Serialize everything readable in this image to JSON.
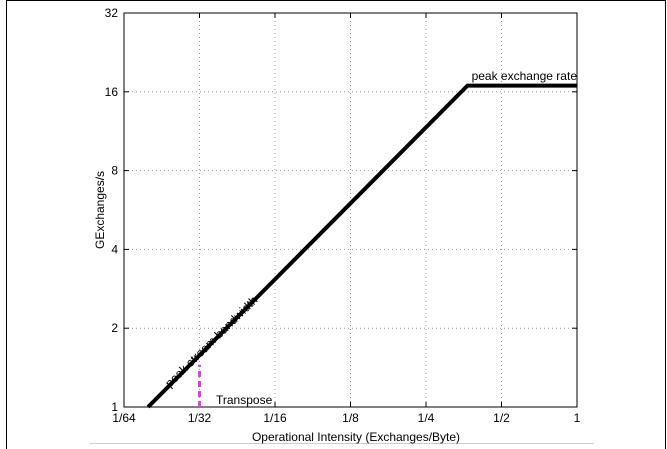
{
  "chart_data": {
    "type": "line",
    "title": "",
    "xlabel": "Operational Intensity (Exchanges/Byte)",
    "ylabel": "GExchanges/s",
    "x_scale": "log2",
    "y_scale": "log2",
    "xlim": [
      0.015625,
      1
    ],
    "ylim": [
      1,
      32
    ],
    "x_ticks": [
      0.015625,
      0.03125,
      0.0625,
      0.125,
      0.25,
      0.5,
      1
    ],
    "x_tick_labels": [
      "1/64",
      "1/32",
      "1/16",
      "1/8",
      "1/4",
      "1/2",
      "1"
    ],
    "y_ticks": [
      1,
      2,
      4,
      8,
      16,
      32
    ],
    "y_tick_labels": [
      "1",
      "2",
      "4",
      "8",
      "16",
      "32"
    ],
    "grid": true,
    "series": [
      {
        "color": "#000000",
        "x": [
          0.0195,
          0.366,
          1
        ],
        "y": [
          1,
          16.9,
          16.9
        ]
      }
    ],
    "markers": [
      {
        "color": "#e040e0",
        "style": "dashed",
        "x": 0.03125,
        "y_range": [
          1,
          1.45
        ]
      }
    ],
    "annotations": {
      "bandwidth": "peak stream bandwidth",
      "peak": "peak exchange rate",
      "transpose": "Transpose"
    }
  }
}
